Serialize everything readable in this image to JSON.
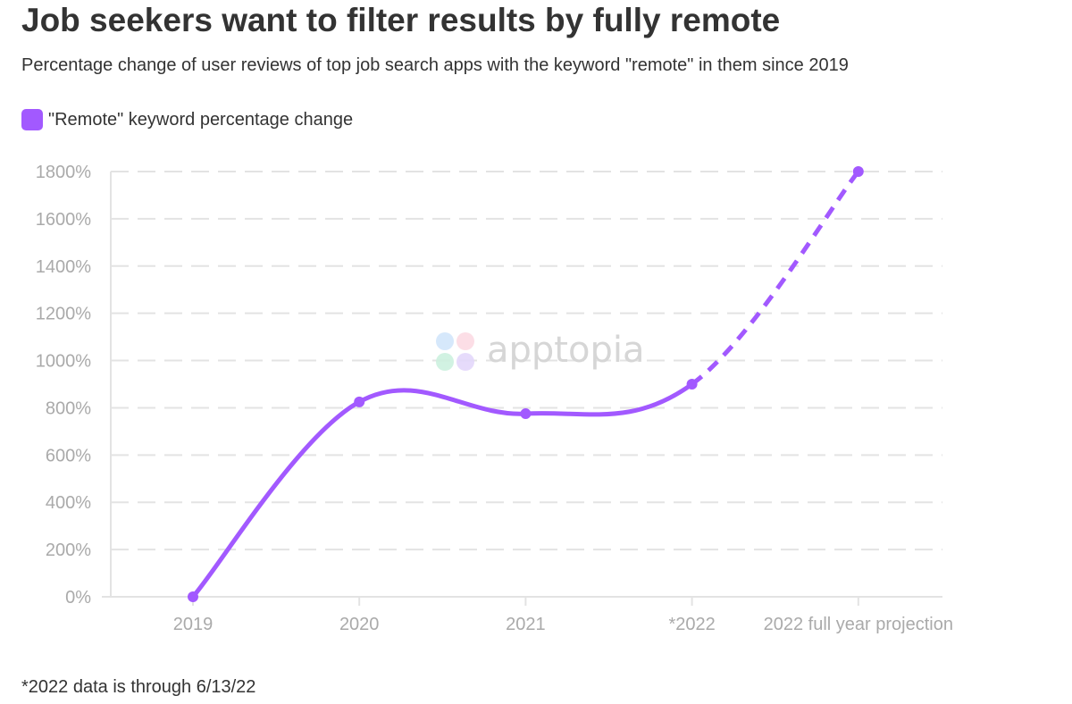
{
  "title": "Job seekers want to filter results by fully remote",
  "subtitle": "Percentage change of user reviews of top job search apps with the keyword \"remote\" in them since 2019",
  "footnote": "*2022 data is through 6/13/22",
  "watermark": "apptopia",
  "chart_data": {
    "type": "line",
    "categories": [
      "2019",
      "2020",
      "2021",
      "*2022",
      "2022 full year projection"
    ],
    "series": [
      {
        "name": "\"Remote\" keyword percentage change",
        "values": [
          0,
          825,
          775,
          900,
          1800
        ],
        "color": "#a259ff",
        "dashed_from_index": 3
      }
    ],
    "y_ticks": [
      0,
      200,
      400,
      600,
      800,
      1000,
      1200,
      1400,
      1600,
      1800
    ],
    "y_tick_suffix": "%",
    "ylim": [
      0,
      1800
    ],
    "grid": true,
    "legend_position": "top-left",
    "xlabel": "",
    "ylabel": ""
  }
}
